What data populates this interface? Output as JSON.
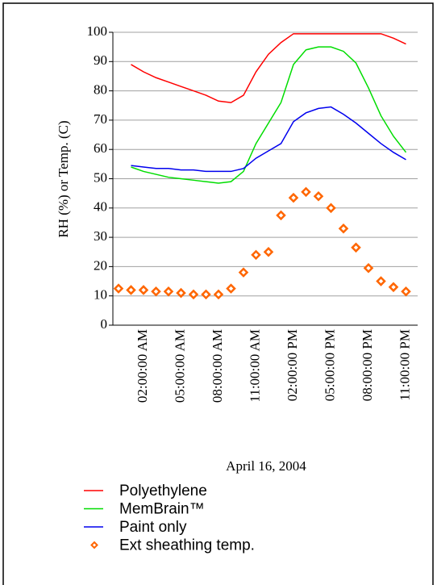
{
  "chart_data": {
    "type": "line",
    "categories": [
      null,
      null,
      "02:00:00 AM",
      null,
      null,
      "05:00:00 AM",
      null,
      null,
      "08:00:00 AM",
      null,
      null,
      "11:00:00 AM",
      null,
      null,
      "02:00:00 PM",
      null,
      null,
      "05:00:00 PM",
      null,
      null,
      "08:00:00 PM",
      null,
      null,
      "11:00:00 PM"
    ],
    "xlabel": "April 16, 2004",
    "ylabel": "RH (%) or Temp. (C)",
    "ylim": [
      0,
      100
    ],
    "yticks": [
      0,
      10,
      20,
      30,
      40,
      50,
      60,
      70,
      80,
      90,
      100
    ],
    "grid": true,
    "legend": "bottom",
    "series": [
      {
        "name": "Polyethylene",
        "color": "#ff0000",
        "marker": "none",
        "values": [
          null,
          89,
          86.5,
          84.5,
          83,
          81.5,
          80,
          78.5,
          76.5,
          76,
          78.5,
          86.5,
          92.5,
          96.5,
          99.5,
          99.5,
          99.5,
          99.5,
          99.5,
          99.5,
          99.5,
          99.5,
          98,
          96
        ]
      },
      {
        "name": "MemBrain™",
        "color": "#00dd00",
        "marker": "none",
        "values": [
          null,
          54,
          52.5,
          51.5,
          50.5,
          50,
          49.5,
          49,
          48.5,
          49,
          52.5,
          62,
          69,
          76,
          89,
          94,
          95,
          95,
          93.5,
          89.5,
          81,
          71.5,
          64.5,
          59
        ]
      },
      {
        "name": "Paint only",
        "color": "#0000ee",
        "marker": "none",
        "values": [
          null,
          54.5,
          54,
          53.5,
          53.5,
          53,
          53,
          52.5,
          52.5,
          52.5,
          53.5,
          57,
          59.5,
          62,
          69.5,
          72.5,
          74,
          74.5,
          72,
          69,
          65.5,
          62,
          59,
          56.5
        ]
      },
      {
        "name": "Ext sheathing temp.",
        "color": "#ff6600",
        "marker": "diamond",
        "values": [
          12.5,
          12,
          12,
          11.5,
          11.5,
          11,
          10.5,
          10.5,
          10.5,
          12.5,
          18,
          24,
          25,
          37.5,
          43.5,
          45.5,
          44,
          40,
          33,
          26.5,
          19.5,
          15,
          13,
          11.5
        ]
      }
    ]
  }
}
